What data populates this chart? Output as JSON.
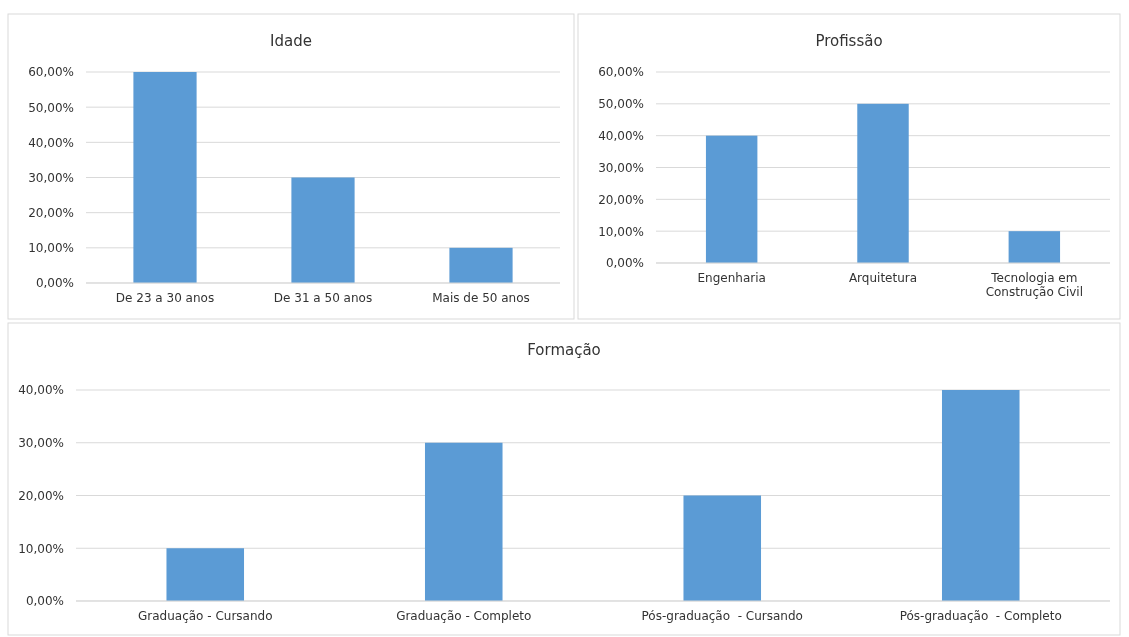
{
  "chart_data": [
    {
      "type": "bar",
      "title": "Idade",
      "categories": [
        "De 23 a 30 anos",
        "De 31 a 50 anos",
        "Mais de 50 anos"
      ],
      "values": [
        60,
        30,
        10
      ],
      "color": "#5b9bd5",
      "ylim": [
        0,
        60
      ],
      "yticks": [
        {
          "value": 0,
          "label": "0,00%"
        },
        {
          "value": 10,
          "label": "10,00%"
        },
        {
          "value": 20,
          "label": "20,00%"
        },
        {
          "value": 30,
          "label": "30,00%"
        },
        {
          "value": 40,
          "label": "40,00%"
        },
        {
          "value": 50,
          "label": "50,00%"
        },
        {
          "value": 60,
          "label": "60,00%"
        }
      ],
      "grid": "y"
    },
    {
      "type": "bar",
      "title": "Profissão",
      "categories": [
        "Engenharia",
        "Arquitetura",
        "Tecnologia em Construção Civil"
      ],
      "values": [
        40,
        50,
        10
      ],
      "color": "#5b9bd5",
      "ylim": [
        0,
        60
      ],
      "yticks": [
        {
          "value": 0,
          "label": "0,00%"
        },
        {
          "value": 10,
          "label": "10,00%"
        },
        {
          "value": 20,
          "label": "20,00%"
        },
        {
          "value": 30,
          "label": "30,00%"
        },
        {
          "value": 40,
          "label": "40,00%"
        },
        {
          "value": 50,
          "label": "50,00%"
        },
        {
          "value": 60,
          "label": "60,00%"
        }
      ],
      "grid": "y"
    },
    {
      "type": "bar",
      "title": "Formação",
      "categories": [
        "Graduação - Cursando",
        "Graduação - Completo",
        "Pós-graduação  - Cursando",
        "Pós-graduação  - Completo"
      ],
      "values": [
        10,
        30,
        20,
        40
      ],
      "color": "#5b9bd5",
      "ylim": [
        0,
        40
      ],
      "yticks": [
        {
          "value": 0,
          "label": "0,00%"
        },
        {
          "value": 10,
          "label": "10,00%"
        },
        {
          "value": 20,
          "label": "20,00%"
        },
        {
          "value": 30,
          "label": "30,00%"
        },
        {
          "value": 40,
          "label": "40,00%"
        }
      ],
      "grid": "y"
    }
  ]
}
